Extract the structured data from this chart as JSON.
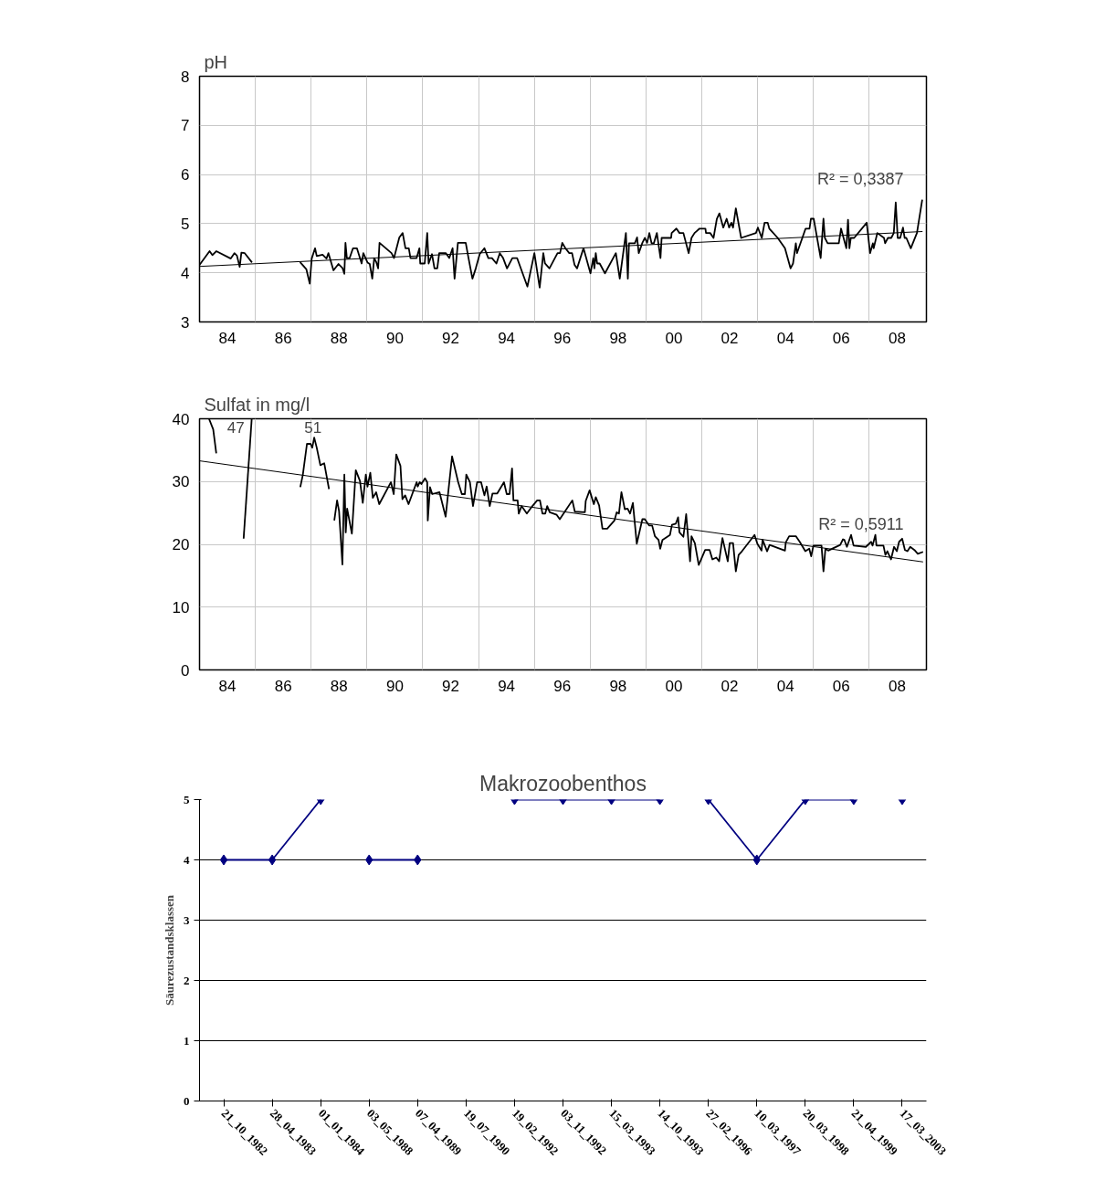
{
  "chart_data": [
    {
      "type": "line",
      "ylabel": "pH",
      "xlim": [
        1983,
        2009.05
      ],
      "ylim": [
        3,
        8
      ],
      "yticks": [
        3,
        4,
        5,
        6,
        7,
        8
      ],
      "grid": true,
      "xticks": [
        {
          "value": 1984,
          "label": "84"
        },
        {
          "value": 1985,
          "label": null
        },
        {
          "value": 1986,
          "label": "86"
        },
        {
          "value": 1987,
          "label": null
        },
        {
          "value": 1988,
          "label": "88"
        },
        {
          "value": 1989,
          "label": null
        },
        {
          "value": 1990,
          "label": "90"
        },
        {
          "value": 1991,
          "label": null
        },
        {
          "value": 1992,
          "label": "92"
        },
        {
          "value": 1993,
          "label": null
        },
        {
          "value": 1994,
          "label": "94"
        },
        {
          "value": 1995,
          "label": null
        },
        {
          "value": 1996,
          "label": "96"
        },
        {
          "value": 1997,
          "label": null
        },
        {
          "value": 1998,
          "label": "98"
        },
        {
          "value": 1999,
          "label": null
        },
        {
          "value": 2000,
          "label": "00"
        },
        {
          "value": 2001,
          "label": null
        },
        {
          "value": 2002,
          "label": "02"
        },
        {
          "value": 2003,
          "label": null
        },
        {
          "value": 2004,
          "label": "04"
        },
        {
          "value": 2005,
          "label": null
        },
        {
          "value": 2006,
          "label": "06"
        },
        {
          "value": 2007,
          "label": null
        },
        {
          "value": 2008,
          "label": "08"
        }
      ],
      "annotations": [
        "R² = 0,3387"
      ],
      "series": [
        {
          "color": "#000000",
          "x": [
            1983.0,
            1983.36,
            1983.46,
            1983.6,
            1984.12,
            1984.25,
            1984.34,
            1984.44,
            1984.5,
            1984.62,
            1984.88,
            1985.7,
            1986.6,
            1986.83,
            1986.95,
            1987.02,
            1987.14,
            1987.2,
            1987.41,
            1987.55,
            1987.62,
            1987.8,
            1987.98,
            1988.12,
            1988.19,
            1988.23,
            1988.28,
            1988.38,
            1988.5,
            1988.64,
            1988.81,
            1988.87,
            1989.02,
            1989.1,
            1989.19,
            1989.26,
            1989.34,
            1989.4,
            1989.45,
            1989.88,
            1989.97,
            1990.16,
            1990.28,
            1990.38,
            1990.5,
            1990.56,
            1990.78,
            1990.88,
            1990.91,
            1991.07,
            1991.16,
            1991.21,
            1991.33,
            1991.42,
            1991.52,
            1991.59,
            1991.83,
            1991.95,
            1992.07,
            1992.14,
            1992.26,
            1992.54,
            1992.64,
            1992.78,
            1992.9,
            1993.04,
            1993.21,
            1993.35,
            1993.48,
            1993.64,
            1993.76,
            1993.88,
            1994.02,
            1994.21,
            1994.38,
            1994.75,
            1995.0,
            1995.19,
            1995.32,
            1995.38,
            1995.54,
            1995.83,
            1995.92,
            1996.0,
            1996.11,
            1996.25,
            1996.35,
            1996.44,
            1996.53,
            1996.76,
            1997.01,
            1997.11,
            1997.15,
            1997.2,
            1997.25,
            1997.34,
            1997.53,
            1997.92,
            1998.06,
            1998.28,
            1998.35,
            1998.39,
            1998.6,
            1998.68,
            1998.74,
            1998.87,
            1998.96,
            1999.04,
            1999.12,
            1999.2,
            1999.28,
            1999.39,
            1999.52,
            1999.56,
            1999.9,
            1999.92,
            2000.09,
            2000.2,
            2000.34,
            2000.53,
            2000.63,
            2000.74,
            2000.92,
            2001.13,
            2001.15,
            2001.3,
            2001.42,
            2001.54,
            2001.63,
            2001.77,
            2001.89,
            2001.98,
            2002.06,
            2002.12,
            2002.22,
            2002.41,
            2002.94,
            2003.01,
            2003.15,
            2003.25,
            2003.36,
            2003.42,
            2003.72,
            2003.98,
            2004.18,
            2004.27,
            2004.37,
            2004.41,
            2004.72,
            2004.86,
            2004.91,
            2005.01,
            2005.26,
            2005.36,
            2005.41,
            2005.51,
            2005.91,
            2005.99,
            2006.18,
            2006.24,
            2006.29,
            2006.34,
            2006.46,
            2006.91,
            2007.03,
            2007.13,
            2007.16,
            2007.29,
            2007.53,
            2007.57,
            2007.67,
            2007.79,
            2007.88,
            2007.95,
            2008.02,
            2008.11,
            2008.21,
            2008.27,
            2008.33,
            2008.49,
            2008.71,
            2008.9
          ],
          "values": [
            4.16,
            4.44,
            4.36,
            4.44,
            4.29,
            4.4,
            4.35,
            4.12,
            4.41,
            4.4,
            4.21,
            null,
            4.22,
            4.07,
            3.78,
            4.29,
            4.5,
            4.34,
            4.37,
            4.29,
            4.4,
            4.05,
            4.18,
            4.1,
            3.98,
            4.61,
            4.3,
            4.3,
            4.5,
            4.5,
            4.19,
            4.4,
            4.21,
            4.18,
            3.88,
            4.3,
            4.21,
            4.09,
            4.61,
            4.4,
            4.3,
            4.72,
            4.81,
            4.5,
            4.5,
            4.3,
            4.3,
            4.5,
            4.19,
            4.19,
            4.81,
            4.19,
            4.38,
            4.09,
            4.09,
            4.4,
            4.4,
            4.3,
            4.5,
            3.88,
            4.61,
            4.61,
            4.3,
            3.88,
            4.09,
            4.38,
            4.5,
            4.3,
            4.3,
            4.19,
            4.4,
            4.3,
            4.09,
            4.3,
            4.3,
            3.72,
            4.4,
            3.7,
            4.4,
            4.19,
            4.09,
            4.4,
            4.4,
            4.61,
            4.5,
            4.4,
            4.4,
            4.16,
            4.09,
            4.5,
            3.99,
            4.3,
            4.09,
            4.4,
            4.19,
            4.19,
            3.99,
            4.4,
            3.88,
            4.81,
            3.88,
            4.6,
            4.6,
            4.72,
            4.4,
            4.61,
            4.71,
            4.61,
            4.81,
            4.6,
            4.6,
            4.81,
            4.3,
            4.71,
            4.71,
            4.81,
            4.9,
            4.81,
            4.81,
            4.4,
            4.71,
            4.81,
            4.9,
            4.9,
            4.81,
            4.81,
            4.71,
            5.1,
            5.21,
            4.92,
            5.1,
            4.92,
            5.02,
            4.92,
            5.31,
            4.71,
            4.81,
            4.92,
            4.71,
            5.02,
            5.02,
            4.9,
            4.71,
            4.5,
            4.09,
            4.19,
            4.6,
            4.4,
            4.9,
            4.9,
            5.1,
            5.1,
            4.3,
            5.1,
            4.71,
            4.6,
            4.6,
            4.9,
            4.5,
            5.08,
            4.5,
            4.71,
            4.71,
            5.02,
            4.4,
            4.6,
            4.5,
            4.81,
            4.71,
            4.6,
            4.71,
            4.71,
            4.81,
            5.43,
            4.71,
            4.71,
            4.92,
            4.71,
            4.71,
            4.5,
            4.81,
            5.49
          ]
        },
        {
          "type": "line",
          "color": "#000000",
          "x": [
            1983.0,
            2008.91
          ],
          "values": [
            4.13,
            4.84
          ]
        }
      ]
    },
    {
      "type": "line",
      "ylabel": "Sulfat in mg/l",
      "xlim": [
        1983,
        2009.05
      ],
      "ylim": [
        0,
        40
      ],
      "yticks": [
        0,
        10,
        20,
        30,
        40
      ],
      "grid": true,
      "xticks": [
        {
          "value": 1984,
          "label": "84"
        },
        {
          "value": 1985,
          "label": null
        },
        {
          "value": 1986,
          "label": "86"
        },
        {
          "value": 1987,
          "label": null
        },
        {
          "value": 1988,
          "label": "88"
        },
        {
          "value": 1989,
          "label": null
        },
        {
          "value": 1990,
          "label": "90"
        },
        {
          "value": 1991,
          "label": null
        },
        {
          "value": 1992,
          "label": "92"
        },
        {
          "value": 1993,
          "label": null
        },
        {
          "value": 1994,
          "label": "94"
        },
        {
          "value": 1995,
          "label": null
        },
        {
          "value": 1996,
          "label": "96"
        },
        {
          "value": 1997,
          "label": null
        },
        {
          "value": 1998,
          "label": "98"
        },
        {
          "value": 1999,
          "label": null
        },
        {
          "value": 2000,
          "label": "00"
        },
        {
          "value": 2001,
          "label": null
        },
        {
          "value": 2002,
          "label": "02"
        },
        {
          "value": 2003,
          "label": null
        },
        {
          "value": 2004,
          "label": "04"
        },
        {
          "value": 2005,
          "label": null
        },
        {
          "value": 2006,
          "label": "06"
        },
        {
          "value": 2007,
          "label": null
        },
        {
          "value": 2008,
          "label": "08"
        }
      ],
      "annotations": [
        "47",
        "51",
        "R² = 0,5911"
      ],
      "series": [
        {
          "color": "#000000",
          "x": [
            1983.34,
            1983.49,
            1983.6,
            1984.31,
            1984.58,
            1984.87
          ],
          "values": [
            40,
            38.3,
            34.5,
            null,
            20.9,
            40
          ]
        },
        {
          "color": "#000000",
          "x": [
            1986.61,
            1986.7,
            1986.85,
            1986.98,
            1987.04,
            1987.11,
            1987.2,
            1987.33,
            1987.47,
            1987.57,
            1987.64
          ],
          "values": [
            29.1,
            31.0,
            36.0,
            36.0,
            35.4,
            37.0,
            35.4,
            32.6,
            32.9,
            30.5,
            28.8
          ]
        },
        {
          "color": "#000000",
          "x": [
            1987.83,
            1987.93,
            1988.0,
            1988.12,
            1988.19,
            1988.24,
            1988.29,
            1988.46,
            1988.6,
            1988.75,
            1988.85,
            1988.96,
            1989.02,
            1989.12,
            1989.21,
            1989.33,
            1989.44,
            1989.86,
            1989.96,
            1990.05,
            1990.2,
            1990.27,
            1990.37,
            1990.49,
            1990.78,
            1990.82,
            1990.89,
            1990.95,
            1991.08,
            1991.16,
            1991.18,
            1991.26,
            1991.34,
            1991.6,
            1991.82,
            1992.05,
            1992.27,
            1992.4,
            1992.51,
            1992.56,
            1992.69,
            1992.8,
            1992.95,
            1993.09,
            1993.21,
            1993.29,
            1993.4,
            1993.5,
            1993.67,
            1993.91,
            1994.01,
            1994.11,
            1994.2,
            1994.25,
            1994.4,
            1994.44,
            1994.54,
            1994.73,
            1994.93,
            1995.1,
            1995.2,
            1995.29,
            1995.39,
            1995.46,
            1995.55,
            1995.8,
            1995.91,
            1996.09,
            1996.36,
            1996.45,
            1996.81,
            1996.84,
            1996.98,
            1997.13,
            1997.2,
            1997.32,
            1997.44,
            1997.61,
            1997.87,
            1997.95,
            1998.03,
            1998.12,
            1998.24,
            1998.34,
            1998.43,
            1998.53,
            1998.67,
            1998.87,
            1998.96,
            1999.11,
            1999.22,
            1999.32,
            1999.45,
            1999.51,
            1999.59,
            1999.86,
            1999.93,
            2000.07,
            2000.15,
            2000.2,
            2000.34,
            2000.44,
            2000.58,
            2000.63,
            2000.75,
            2000.89,
            2001.12,
            2001.28,
            2001.38,
            2001.52,
            2001.62,
            2001.74,
            2001.93,
            2002.0,
            2002.12,
            2002.22,
            2002.32,
            2002.44,
            2002.89,
            2002.99,
            2003.14,
            2003.18,
            2003.34,
            2003.43,
            2003.98,
            2004.01,
            2004.13,
            2004.37,
            2004.51,
            2004.71,
            2004.85,
            2004.92,
            2005.0,
            2005.29,
            2005.36,
            2005.43,
            2005.53,
            2005.96,
            2006.06,
            2006.11,
            2006.2,
            2006.35,
            2006.44,
            2006.88,
            2007.07,
            2007.12,
            2007.22,
            2007.26,
            2007.51,
            2007.58,
            2007.65,
            2007.78,
            2007.89,
            2007.99,
            2008.07,
            2008.18,
            2008.28,
            2008.37,
            2008.47,
            2008.62,
            2008.74,
            2008.93
          ],
          "values": [
            23.8,
            27.0,
            25.3,
            16.8,
            31.1,
            21.9,
            25.7,
            21.7,
            31.8,
            30.1,
            26.6,
            31.1,
            29.2,
            31.4,
            27.4,
            28.3,
            26.4,
            29.9,
            28.0,
            34.3,
            32.5,
            27.2,
            27.8,
            26.4,
            29.9,
            29.2,
            29.9,
            29.6,
            30.5,
            29.9,
            23.8,
            29.1,
            28.0,
            28.3,
            24.4,
            34.0,
            29.9,
            28.0,
            28.0,
            31.1,
            29.9,
            26.1,
            29.9,
            29.9,
            27.8,
            29.2,
            26.1,
            28.1,
            28.1,
            29.9,
            28.0,
            28.0,
            32.1,
            27.0,
            27.0,
            24.9,
            26.1,
            24.9,
            26.1,
            27.0,
            27.0,
            24.9,
            24.9,
            26.1,
            25.1,
            24.7,
            24.0,
            25.2,
            27.0,
            25.2,
            25.1,
            26.9,
            28.6,
            26.4,
            27.5,
            26.2,
            22.5,
            22.5,
            23.8,
            25.1,
            24.9,
            28.3,
            25.6,
            25.7,
            24.9,
            26.6,
            20.1,
            24.0,
            24.0,
            23.0,
            23.0,
            21.3,
            20.7,
            19.3,
            20.7,
            21.5,
            23.1,
            23.3,
            24.3,
            21.9,
            21.2,
            24.8,
            17.3,
            21.3,
            20.2,
            16.7,
            19.1,
            19.1,
            17.6,
            17.9,
            17.3,
            21.0,
            17.3,
            20.2,
            20.2,
            15.7,
            18.3,
            18.9,
            21.5,
            20.1,
            19.0,
            20.7,
            18.9,
            19.9,
            19.0,
            20.3,
            21.3,
            21.3,
            20.4,
            18.9,
            19.3,
            18.1,
            19.8,
            19.8,
            15.7,
            19.3,
            19.0,
            19.9,
            20.8,
            20.7,
            19.6,
            21.5,
            19.8,
            19.6,
            20.4,
            19.8,
            21.5,
            19.8,
            19.8,
            18.3,
            18.9,
            17.6,
            19.6,
            18.9,
            20.4,
            20.9,
            19.1,
            18.9,
            19.6,
            19.1,
            18.5,
            18.8
          ]
        },
        {
          "type": "line",
          "color": "#000000",
          "x": [
            1983.0,
            2008.93
          ],
          "values": [
            33.3,
            17.2
          ]
        }
      ]
    },
    {
      "type": "line",
      "title": "Makrozoobenthos",
      "ylabel": "Säurezustandsklassen",
      "ylim": [
        0,
        5
      ],
      "yticks": [
        0,
        1,
        2,
        3,
        4,
        5
      ],
      "grid": "y",
      "marker": "diamond",
      "categories": [
        "21_10_1982",
        "28_04_1983",
        "01_01_1984",
        "03_05_1988",
        "07_04_1989",
        "19_07_1990",
        "19_02_1992",
        "03_11_1992",
        "15_03_1993",
        "14_10_1993",
        "27_02_1996",
        "10_03_1997",
        "20_03_1998",
        "21_04_1999",
        "17_03_2003"
      ],
      "series": [
        {
          "color": "#000080",
          "values": [
            4,
            4,
            5,
            null,
            null,
            null,
            null,
            null,
            null,
            null,
            null,
            null,
            null,
            null,
            null
          ]
        },
        {
          "color": "#000080",
          "values": [
            null,
            null,
            null,
            4,
            4,
            null,
            null,
            null,
            null,
            null,
            null,
            null,
            null,
            null,
            null
          ]
        },
        {
          "color": "#000080",
          "values": [
            null,
            null,
            null,
            null,
            null,
            null,
            5,
            5,
            5,
            5,
            null,
            null,
            null,
            null,
            null
          ]
        },
        {
          "color": "#000080",
          "values": [
            null,
            null,
            null,
            null,
            null,
            null,
            null,
            null,
            null,
            null,
            5,
            4,
            5,
            5,
            null
          ]
        },
        {
          "color": "#000080",
          "values": [
            null,
            null,
            null,
            null,
            null,
            null,
            null,
            null,
            null,
            null,
            null,
            null,
            null,
            null,
            5
          ]
        }
      ]
    }
  ]
}
